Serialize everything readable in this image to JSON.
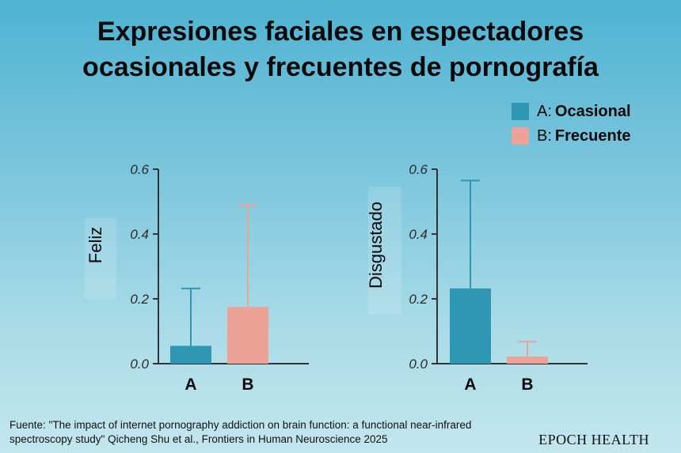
{
  "title": {
    "line1": "Expresiones faciales en espectadores",
    "line2": "ocasionales y frecuentes de pornografía"
  },
  "legend": [
    {
      "key": "A:",
      "label": "Ocasional",
      "color": "#2f97b3"
    },
    {
      "key": "B:",
      "label": "Frecuente",
      "color": "#eda297"
    }
  ],
  "chart_data": [
    {
      "type": "bar",
      "categories": [
        "A",
        "B"
      ],
      "values": [
        0.055,
        0.175
      ],
      "error_upper": [
        0.232,
        0.49
      ],
      "colors": [
        "#2f97b3",
        "#eda297"
      ],
      "ylabel": "Feliz",
      "xlabel": "",
      "ylim": [
        0,
        0.6
      ],
      "yticks": [
        "0.0",
        "0.2",
        "0.4",
        "0.6"
      ]
    },
    {
      "type": "bar",
      "categories": [
        "A",
        "B"
      ],
      "values": [
        0.232,
        0.022
      ],
      "error_upper": [
        0.565,
        0.068
      ],
      "colors": [
        "#2f97b3",
        "#eda297"
      ],
      "ylabel": "Disgustado",
      "xlabel": "",
      "ylim": [
        0,
        0.6
      ],
      "yticks": [
        "0.0",
        "0.2",
        "0.4",
        "0.6"
      ]
    }
  ],
  "source": {
    "line1": "Fuente: \"The impact of internet pornography addiction on brain function: a functional near-infrared",
    "line2": "spectroscopy study\" Qicheng Shu et al., Frontiers in Human Neuroscience 2025"
  },
  "brand": "EPOCH HEALTH"
}
